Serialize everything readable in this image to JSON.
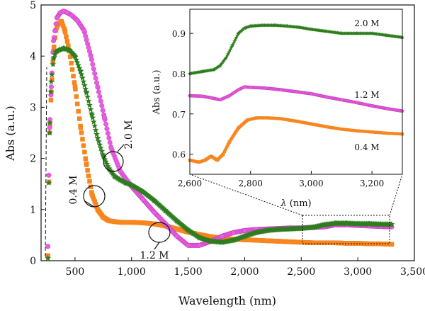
{
  "chart_data": [
    {
      "type": "scatter",
      "xlabel": "Wavelength (nm)",
      "ylabel": "Abs (a.u.)",
      "xlim": [
        200,
        3500
      ],
      "ylim": [
        0,
        5
      ],
      "xticks": [
        500,
        1000,
        1500,
        2000,
        2500,
        3000,
        3500
      ],
      "xtick_labels": [
        "500",
        "1,000",
        "1,500",
        "2,000",
        "2,500",
        "3,000",
        "3,500"
      ],
      "yticks": [
        0,
        1,
        2,
        3,
        4,
        5
      ],
      "ytick_labels": [
        "0",
        "1",
        "2",
        "3",
        "4",
        "5"
      ],
      "grid": false,
      "series": [
        {
          "name": "0.4 M",
          "color": "#f7861e",
          "marker": "square",
          "x": [
            260,
            275,
            290,
            310,
            330,
            350,
            380,
            410,
            450,
            500,
            550,
            600,
            650,
            700,
            750,
            800,
            900,
            1000,
            1100,
            1200,
            1300,
            1400,
            1500,
            1600,
            1700,
            1800,
            1900,
            2000,
            2100,
            2200,
            2300,
            2400,
            2500,
            2600,
            2700,
            2800,
            2900,
            3000,
            3100,
            3200,
            3300
          ],
          "y": [
            0.1,
            2.5,
            3.3,
            4.1,
            4.5,
            4.62,
            4.68,
            4.5,
            4.1,
            3.4,
            2.6,
            1.9,
            1.3,
            1.0,
            0.85,
            0.78,
            0.75,
            0.75,
            0.74,
            0.72,
            0.68,
            0.62,
            0.56,
            0.51,
            0.47,
            0.44,
            0.42,
            0.41,
            0.4,
            0.39,
            0.38,
            0.37,
            0.36,
            0.35,
            0.35,
            0.35,
            0.34,
            0.34,
            0.33,
            0.33,
            0.32
          ]
        },
        {
          "name": "1.2 M",
          "color": "#e85de0",
          "marker": "circle",
          "x": [
            260,
            275,
            290,
            310,
            340,
            370,
            400,
            430,
            470,
            520,
            580,
            640,
            700,
            760,
            820,
            900,
            1000,
            1100,
            1200,
            1300,
            1400,
            1500,
            1600,
            1700,
            1800,
            1900,
            2000,
            2100,
            2200,
            2300,
            2400,
            2500,
            2600,
            2700,
            2800,
            2900,
            3000,
            3100,
            3200,
            3300
          ],
          "y": [
            0.28,
            2.6,
            3.4,
            4.3,
            4.75,
            4.85,
            4.88,
            4.85,
            4.8,
            4.7,
            4.5,
            4.0,
            3.4,
            2.8,
            2.2,
            1.75,
            1.45,
            1.2,
            0.95,
            0.72,
            0.48,
            0.3,
            0.3,
            0.38,
            0.48,
            0.55,
            0.59,
            0.61,
            0.62,
            0.63,
            0.64,
            0.64,
            0.65,
            0.66,
            0.7,
            0.7,
            0.69,
            0.68,
            0.67,
            0.66
          ]
        },
        {
          "name": "2.0 M",
          "color": "#2e7d1f",
          "marker": "star",
          "x": [
            260,
            275,
            290,
            310,
            330,
            360,
            400,
            450,
            500,
            550,
            600,
            650,
            700,
            750,
            800,
            850,
            900,
            950,
            1000,
            1100,
            1200,
            1300,
            1400,
            1500,
            1600,
            1700,
            1800,
            1900,
            2000,
            2100,
            2200,
            2300,
            2400,
            2500,
            2600,
            2700,
            2800,
            2900,
            3000,
            3100,
            3200,
            3300
          ],
          "y": [
            0.05,
            2.5,
            3.5,
            3.95,
            4.08,
            4.12,
            4.15,
            4.12,
            4.0,
            3.7,
            3.3,
            2.85,
            2.4,
            2.05,
            1.8,
            1.65,
            1.58,
            1.52,
            1.48,
            1.35,
            1.18,
            0.98,
            0.78,
            0.6,
            0.45,
            0.38,
            0.36,
            0.4,
            0.48,
            0.55,
            0.59,
            0.61,
            0.62,
            0.63,
            0.65,
            0.7,
            0.73,
            0.73,
            0.72,
            0.72,
            0.71,
            0.71
          ]
        }
      ],
      "annotations": [
        {
          "text": "0.4 M",
          "series": "0.4 M"
        },
        {
          "text": "1.2 M",
          "series": "1.2 M"
        },
        {
          "text": "2.0 M",
          "series": "2.0 M"
        }
      ],
      "zoom_box_x": [
        2570,
        3320
      ]
    },
    {
      "type": "scatter",
      "xlabel": "λ (nm)",
      "xlabel_italic_part": "λ",
      "xlabel_rest": " (nm)",
      "ylabel": "Abs (a.u.)",
      "xlim": [
        2600,
        3300
      ],
      "ylim": [
        0.55,
        0.96
      ],
      "xticks": [
        2600,
        2800,
        3000,
        3200
      ],
      "xtick_labels": [
        "2,600",
        "2,800",
        "3,000",
        "3,200"
      ],
      "yticks": [
        0.6,
        0.7,
        0.8,
        0.9
      ],
      "ytick_labels": [
        "0.6",
        "0.7",
        "0.8",
        "0.9"
      ],
      "grid": false,
      "series": [
        {
          "name": "2.0 M",
          "color": "#2e7d1f",
          "marker": "star",
          "x": [
            2600,
            2640,
            2680,
            2700,
            2720,
            2740,
            2760,
            2780,
            2800,
            2840,
            2880,
            2920,
            2960,
            3000,
            3050,
            3100,
            3150,
            3200,
            3250,
            3300
          ],
          "y": [
            0.8,
            0.805,
            0.81,
            0.82,
            0.84,
            0.87,
            0.9,
            0.913,
            0.918,
            0.92,
            0.92,
            0.918,
            0.915,
            0.91,
            0.905,
            0.9,
            0.9,
            0.9,
            0.895,
            0.89
          ]
        },
        {
          "name": "1.2 M",
          "color": "#e85de0",
          "marker": "circle",
          "x": [
            2600,
            2640,
            2670,
            2700,
            2730,
            2760,
            2780,
            2800,
            2850,
            2900,
            2950,
            3000,
            3050,
            3100,
            3150,
            3200,
            3250,
            3300
          ],
          "y": [
            0.745,
            0.744,
            0.74,
            0.735,
            0.745,
            0.76,
            0.767,
            0.766,
            0.764,
            0.76,
            0.755,
            0.75,
            0.742,
            0.735,
            0.728,
            0.72,
            0.713,
            0.707
          ]
        },
        {
          "name": "0.4 M",
          "color": "#f7861e",
          "marker": "square",
          "x": [
            2600,
            2630,
            2650,
            2670,
            2690,
            2710,
            2730,
            2760,
            2790,
            2820,
            2860,
            2900,
            2950,
            3000,
            3050,
            3100,
            3150,
            3200,
            3250,
            3300
          ],
          "y": [
            0.585,
            0.58,
            0.585,
            0.595,
            0.585,
            0.6,
            0.63,
            0.665,
            0.685,
            0.69,
            0.69,
            0.688,
            0.682,
            0.675,
            0.668,
            0.662,
            0.658,
            0.655,
            0.652,
            0.65
          ]
        }
      ],
      "annotations": [
        {
          "text": "2.0 M",
          "series": "2.0 M"
        },
        {
          "text": "1.2 M",
          "series": "1.2 M"
        },
        {
          "text": "0.4 M",
          "series": "0.4 M"
        }
      ]
    }
  ]
}
